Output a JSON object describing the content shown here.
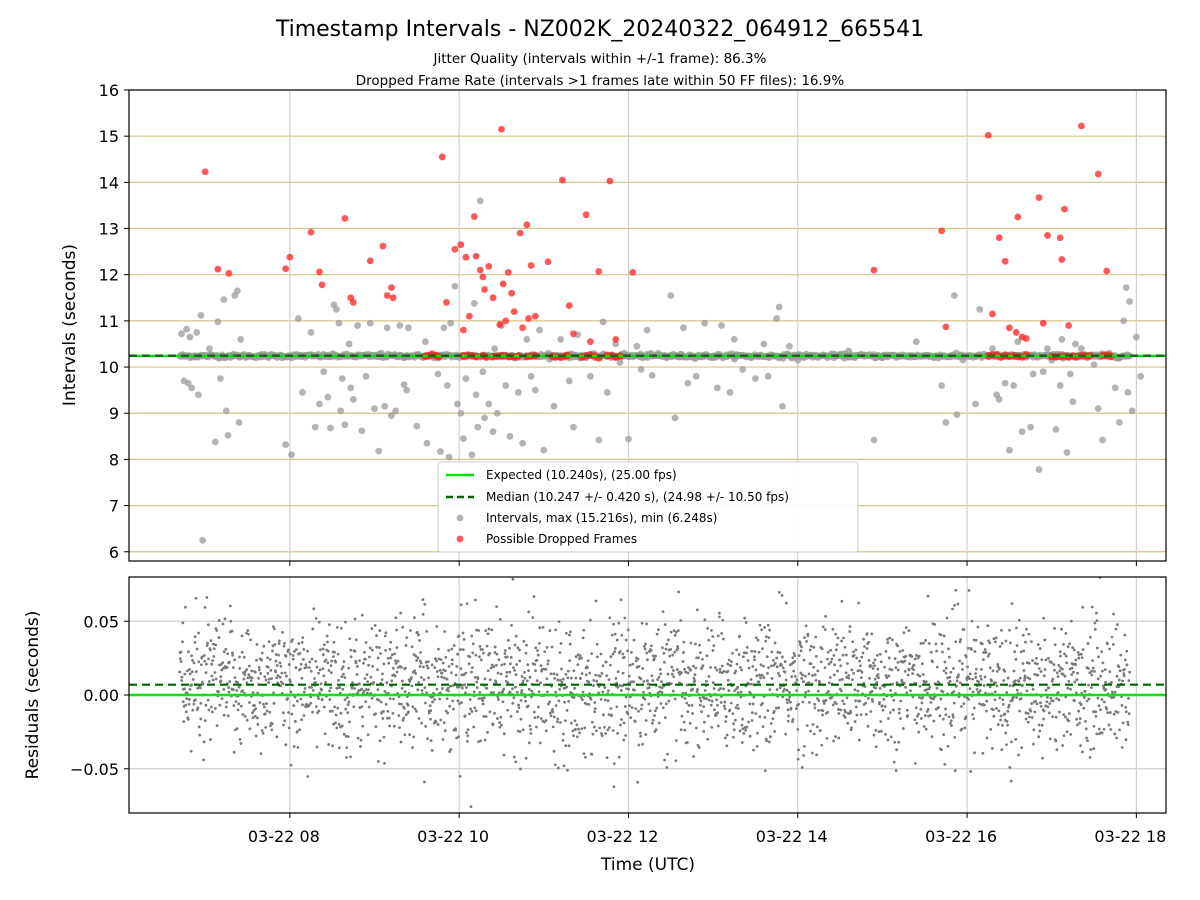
{
  "title": "Timestamp Intervals - NZ002K_20240322_064912_665541",
  "subtitle_1": "Jitter Quality (intervals within +/-1 frame): 86.3%",
  "subtitle_2": "Dropped Frame Rate (intervals >1 frames late within 50 FF files): 16.9%",
  "chart_data": [
    {
      "type": "scatter",
      "ylabel": "Intervals (seconds)",
      "ylim": [
        5.8,
        16
      ],
      "yticks": [
        6,
        7,
        8,
        9,
        10,
        11,
        12,
        13,
        14,
        15,
        16
      ],
      "xlim_hours": [
        6.1,
        18.35
      ],
      "legend_placement": "lower-center",
      "expected_interval": 10.24,
      "median_interval": 10.247,
      "legend": {
        "expected": "Expected (10.240s), (25.00 fps)",
        "median": "Median (10.247 +/- 0.420 s), (24.98 +/- 10.50 fps)",
        "intervals": "Intervals, max (15.216s), min (6.248s)",
        "dropped": "Possible Dropped Frames"
      },
      "colors": {
        "expected": "#00e600",
        "median": "#006400",
        "intervals": "#999999",
        "dropped": "#ff2020",
        "hgrid": "#d4c38a"
      },
      "grey_points": [
        [
          6.72,
          10.72
        ],
        [
          6.78,
          10.82
        ],
        [
          6.82,
          10.65
        ],
        [
          6.75,
          9.7
        ],
        [
          6.8,
          9.65
        ],
        [
          6.84,
          9.55
        ],
        [
          6.95,
          11.12
        ],
        [
          6.97,
          6.25
        ],
        [
          6.9,
          10.75
        ],
        [
          6.92,
          9.4
        ],
        [
          7.05,
          10.4
        ],
        [
          7.12,
          8.38
        ],
        [
          7.15,
          10.98
        ],
        [
          7.18,
          9.75
        ],
        [
          7.22,
          11.46
        ],
        [
          7.25,
          9.05
        ],
        [
          7.27,
          8.52
        ],
        [
          7.32,
          10.25
        ],
        [
          7.35,
          11.55
        ],
        [
          7.4,
          8.8
        ],
        [
          7.38,
          11.65
        ],
        [
          7.42,
          10.6
        ],
        [
          7.95,
          8.32
        ],
        [
          8.02,
          8.1
        ],
        [
          8.1,
          11.05
        ],
        [
          8.15,
          9.45
        ],
        [
          8.25,
          10.75
        ],
        [
          8.3,
          8.7
        ],
        [
          8.35,
          9.2
        ],
        [
          8.4,
          9.9
        ],
        [
          8.45,
          9.35
        ],
        [
          8.48,
          8.68
        ],
        [
          8.52,
          11.35
        ],
        [
          8.55,
          11.25
        ],
        [
          8.58,
          10.95
        ],
        [
          8.6,
          9.05
        ],
        [
          8.62,
          9.75
        ],
        [
          8.65,
          8.75
        ],
        [
          8.7,
          10.5
        ],
        [
          8.72,
          9.55
        ],
        [
          8.75,
          9.3
        ],
        [
          8.8,
          10.9
        ],
        [
          8.85,
          8.62
        ],
        [
          8.9,
          9.8
        ],
        [
          8.95,
          10.95
        ],
        [
          9.0,
          9.1
        ],
        [
          9.05,
          8.18
        ],
        [
          9.08,
          10.3
        ],
        [
          9.12,
          9.15
        ],
        [
          9.15,
          10.85
        ],
        [
          9.2,
          8.95
        ],
        [
          9.25,
          9.05
        ],
        [
          9.3,
          10.9
        ],
        [
          9.35,
          9.62
        ],
        [
          9.38,
          9.5
        ],
        [
          9.4,
          10.85
        ],
        [
          9.5,
          8.72
        ],
        [
          9.6,
          10.55
        ],
        [
          9.62,
          8.35
        ],
        [
          9.7,
          10.2
        ],
        [
          9.75,
          9.85
        ],
        [
          9.78,
          8.17
        ],
        [
          9.82,
          10.85
        ],
        [
          9.86,
          9.6
        ],
        [
          9.88,
          8.05
        ],
        [
          9.9,
          10.95
        ],
        [
          9.95,
          11.75
        ],
        [
          9.98,
          9.2
        ],
        [
          10.02,
          9.0
        ],
        [
          10.05,
          8.45
        ],
        [
          10.08,
          9.75
        ],
        [
          10.12,
          10.25
        ],
        [
          10.15,
          8.1
        ],
        [
          10.18,
          11.38
        ],
        [
          10.2,
          9.4
        ],
        [
          10.22,
          8.7
        ],
        [
          10.25,
          13.6
        ],
        [
          10.28,
          9.9
        ],
        [
          10.3,
          8.9
        ],
        [
          10.35,
          9.2
        ],
        [
          10.4,
          8.6
        ],
        [
          10.42,
          10.4
        ],
        [
          10.45,
          9.0
        ],
        [
          10.5,
          10.9
        ],
        [
          10.55,
          9.6
        ],
        [
          10.6,
          8.5
        ],
        [
          10.65,
          10.2
        ],
        [
          10.7,
          9.45
        ],
        [
          10.75,
          8.35
        ],
        [
          10.8,
          10.6
        ],
        [
          10.85,
          9.8
        ],
        [
          10.9,
          9.5
        ],
        [
          10.95,
          10.8
        ],
        [
          11.0,
          8.2
        ],
        [
          11.05,
          10.3
        ],
        [
          11.12,
          9.15
        ],
        [
          11.2,
          10.6
        ],
        [
          11.3,
          9.7
        ],
        [
          11.35,
          8.7
        ],
        [
          11.4,
          10.7
        ],
        [
          11.5,
          10.2
        ],
        [
          11.55,
          9.8
        ],
        [
          11.65,
          8.42
        ],
        [
          11.7,
          10.98
        ],
        [
          11.75,
          9.45
        ],
        [
          11.85,
          10.5
        ],
        [
          11.9,
          10.1
        ],
        [
          11.95,
          10.3
        ],
        [
          12.0,
          8.44
        ],
        [
          12.1,
          10.45
        ],
        [
          12.15,
          9.95
        ],
        [
          12.22,
          10.8
        ],
        [
          12.28,
          9.82
        ],
        [
          12.35,
          10.3
        ],
        [
          12.45,
          10.2
        ],
        [
          12.5,
          11.55
        ],
        [
          12.55,
          8.9
        ],
        [
          12.65,
          10.85
        ],
        [
          12.7,
          9.65
        ],
        [
          12.8,
          9.8
        ],
        [
          12.9,
          10.95
        ],
        [
          13.0,
          10.2
        ],
        [
          13.05,
          9.55
        ],
        [
          13.1,
          10.9
        ],
        [
          13.2,
          9.45
        ],
        [
          13.25,
          10.6
        ],
        [
          13.35,
          9.95
        ],
        [
          13.45,
          10.2
        ],
        [
          13.5,
          9.75
        ],
        [
          13.6,
          10.5
        ],
        [
          13.65,
          9.8
        ],
        [
          13.75,
          11.05
        ],
        [
          13.78,
          11.3
        ],
        [
          13.82,
          9.15
        ],
        [
          13.9,
          10.45
        ],
        [
          14.0,
          10.15
        ],
        [
          14.3,
          10.25
        ],
        [
          14.6,
          10.35
        ],
        [
          14.9,
          8.42
        ],
        [
          15.0,
          10.2
        ],
        [
          15.4,
          10.55
        ],
        [
          15.7,
          9.6
        ],
        [
          15.75,
          8.8
        ],
        [
          15.85,
          11.55
        ],
        [
          15.88,
          8.97
        ],
        [
          15.95,
          10.15
        ],
        [
          16.1,
          9.2
        ],
        [
          16.15,
          11.25
        ],
        [
          16.3,
          10.4
        ],
        [
          16.35,
          9.4
        ],
        [
          16.38,
          9.3
        ],
        [
          16.45,
          9.65
        ],
        [
          16.5,
          8.2
        ],
        [
          16.55,
          9.6
        ],
        [
          16.6,
          10.55
        ],
        [
          16.65,
          8.6
        ],
        [
          16.7,
          10.25
        ],
        [
          16.75,
          8.7
        ],
        [
          16.78,
          9.85
        ],
        [
          16.85,
          7.78
        ],
        [
          16.9,
          9.9
        ],
        [
          16.95,
          10.4
        ],
        [
          17.0,
          10.15
        ],
        [
          17.05,
          8.65
        ],
        [
          17.1,
          9.6
        ],
        [
          17.12,
          10.6
        ],
        [
          17.18,
          8.15
        ],
        [
          17.2,
          10.25
        ],
        [
          17.22,
          9.85
        ],
        [
          17.25,
          9.25
        ],
        [
          17.28,
          10.5
        ],
        [
          17.35,
          10.4
        ],
        [
          17.42,
          10.2
        ],
        [
          17.5,
          10.05
        ],
        [
          17.55,
          9.1
        ],
        [
          17.6,
          8.42
        ],
        [
          17.68,
          10.3
        ],
        [
          17.75,
          9.55
        ],
        [
          17.8,
          8.8
        ],
        [
          17.85,
          11.0
        ],
        [
          17.88,
          11.72
        ],
        [
          17.9,
          9.45
        ],
        [
          17.92,
          11.42
        ],
        [
          17.95,
          9.05
        ],
        [
          18.0,
          10.65
        ],
        [
          18.05,
          9.8
        ]
      ],
      "red_points": [
        [
          7.0,
          14.23
        ],
        [
          7.15,
          12.12
        ],
        [
          7.28,
          12.03
        ],
        [
          7.95,
          12.13
        ],
        [
          8.0,
          12.38
        ],
        [
          8.25,
          12.92
        ],
        [
          8.35,
          12.06
        ],
        [
          8.38,
          11.78
        ],
        [
          8.65,
          13.22
        ],
        [
          8.72,
          11.5
        ],
        [
          8.75,
          11.4
        ],
        [
          8.95,
          12.3
        ],
        [
          9.1,
          12.62
        ],
        [
          9.15,
          11.55
        ],
        [
          9.2,
          11.72
        ],
        [
          9.22,
          11.5
        ],
        [
          9.8,
          14.55
        ],
        [
          9.85,
          11.4
        ],
        [
          9.95,
          12.55
        ],
        [
          10.02,
          12.65
        ],
        [
          10.08,
          12.38
        ],
        [
          10.12,
          11.1
        ],
        [
          10.05,
          10.8
        ],
        [
          10.18,
          13.26
        ],
        [
          10.2,
          12.4
        ],
        [
          10.25,
          12.1
        ],
        [
          10.28,
          11.95
        ],
        [
          10.3,
          11.68
        ],
        [
          10.35,
          12.18
        ],
        [
          10.4,
          11.5
        ],
        [
          10.48,
          10.92
        ],
        [
          10.5,
          15.15
        ],
        [
          10.52,
          11.8
        ],
        [
          10.55,
          11.0
        ],
        [
          10.58,
          12.05
        ],
        [
          10.62,
          11.6
        ],
        [
          10.65,
          11.2
        ],
        [
          10.72,
          12.9
        ],
        [
          10.75,
          10.85
        ],
        [
          10.8,
          13.08
        ],
        [
          10.82,
          11.05
        ],
        [
          10.85,
          12.2
        ],
        [
          10.9,
          11.1
        ],
        [
          11.05,
          12.28
        ],
        [
          11.22,
          14.05
        ],
        [
          11.3,
          11.33
        ],
        [
          11.35,
          10.72
        ],
        [
          11.5,
          13.3
        ],
        [
          11.55,
          10.55
        ],
        [
          11.65,
          12.07
        ],
        [
          11.78,
          14.03
        ],
        [
          11.85,
          10.6
        ],
        [
          12.05,
          12.05
        ],
        [
          14.9,
          12.1
        ],
        [
          15.7,
          12.95
        ],
        [
          15.75,
          10.87
        ],
        [
          16.25,
          15.02
        ],
        [
          16.3,
          11.15
        ],
        [
          16.38,
          12.8
        ],
        [
          16.45,
          12.29
        ],
        [
          16.5,
          10.85
        ],
        [
          16.58,
          10.75
        ],
        [
          16.6,
          13.25
        ],
        [
          16.65,
          10.65
        ],
        [
          16.85,
          13.67
        ],
        [
          16.95,
          12.85
        ],
        [
          17.1,
          12.8
        ],
        [
          17.12,
          12.33
        ],
        [
          17.15,
          13.42
        ],
        [
          17.2,
          10.9
        ],
        [
          17.35,
          15.22
        ],
        [
          17.55,
          14.18
        ],
        [
          17.65,
          12.08
        ],
        [
          16.7,
          10.62
        ],
        [
          16.9,
          10.95
        ]
      ],
      "red_baseline_hours": [
        9.6,
        9.64,
        9.68,
        9.72,
        9.76,
        10.05,
        10.1,
        10.15,
        10.2,
        10.28,
        10.32,
        10.4,
        10.45,
        10.5,
        10.55,
        10.6,
        10.65,
        10.7,
        10.8,
        10.85,
        10.9,
        11.1,
        11.15,
        11.2,
        11.25,
        11.28,
        11.45,
        11.5,
        11.55,
        11.6,
        11.65,
        11.75,
        11.8,
        11.85,
        11.9,
        16.25,
        16.3,
        16.35,
        16.4,
        16.45,
        16.5,
        16.55,
        16.6,
        16.65,
        16.7,
        17.0,
        17.05,
        17.1,
        17.15,
        17.2,
        17.25,
        17.3,
        17.35,
        17.4,
        17.45,
        17.6,
        17.65,
        17.7
      ]
    },
    {
      "type": "scatter",
      "ylabel": "Residuals (seconds)",
      "xlabel": "Time (UTC)",
      "ylim": [
        -0.08,
        0.08
      ],
      "yticks": [
        -0.05,
        0.0,
        0.05
      ],
      "ytick_labels": [
        "−0.05",
        "0.00",
        "0.05"
      ],
      "xticks_hours": [
        8,
        10,
        12,
        14,
        16,
        18
      ],
      "xtick_labels": [
        "03-22 08",
        "03-22 10",
        "03-22 12",
        "03-22 14",
        "03-22 16",
        "03-22 18"
      ],
      "expected_residual": 0.0,
      "median_residual": 0.007,
      "residual_range_hours": [
        6.7,
        17.92
      ],
      "residual_point_count": 2600,
      "residual_std": 0.022,
      "colors": {
        "points": "#7a7a7a",
        "grid": "#cfcfcf"
      }
    }
  ]
}
